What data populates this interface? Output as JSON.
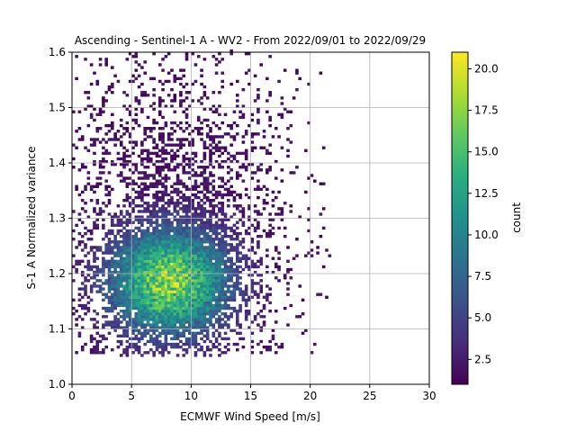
{
  "chart_data": {
    "type": "heatmap",
    "title": "Ascending - Sentinel-1 A - WV2 - From 2022/09/01 to 2022/09/29",
    "xlabel": "ECMWF Wind Speed [m/s]",
    "ylabel": "S-1 A Normalized variance",
    "colorbar_label": "count",
    "xlim": [
      0,
      30
    ],
    "ylim": [
      1.0,
      1.6
    ],
    "xticks": [
      "0",
      "5",
      "10",
      "15",
      "20",
      "25",
      "30"
    ],
    "yticks": [
      "1.0",
      "1.1",
      "1.2",
      "1.3",
      "1.4",
      "1.5",
      "1.6"
    ],
    "colorbar_range": [
      1,
      21
    ],
    "colorbar_ticks": [
      "2.5",
      "5.0",
      "7.5",
      "10.0",
      "12.5",
      "15.0",
      "17.5",
      "20.0"
    ],
    "colormap": "viridis",
    "grid": true,
    "density_peak": {
      "x": 8.2,
      "y": 1.185,
      "count": 21
    },
    "bin_size": {
      "x": 0.25,
      "y": 0.005
    }
  }
}
